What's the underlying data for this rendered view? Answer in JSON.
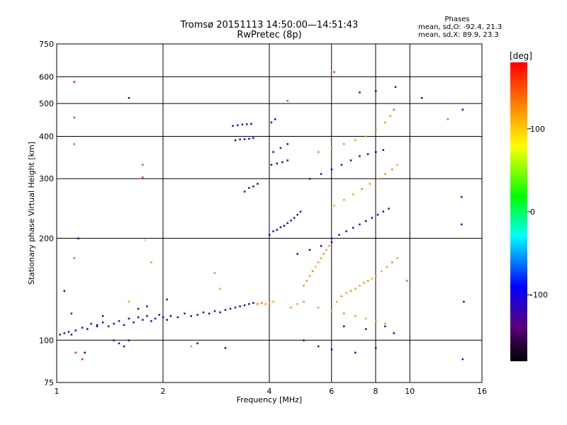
{
  "title": {
    "line1": "Tromsø 20151113 14:50:00—14:51:43",
    "line2": "RwPretec (8p)"
  },
  "phases_box": {
    "header": "Phases",
    "o_line": "mean, sd,O: -92.4, 21.3",
    "x_line": "mean, sd,X:  89.9, 23.3"
  },
  "colorbar": {
    "unit": "[deg]",
    "ticks": [
      "100",
      "0",
      "-100"
    ],
    "tick_values": [
      100,
      0,
      -100
    ],
    "range": [
      -180,
      180
    ]
  },
  "chart_data": {
    "type": "scatter",
    "xlabel": "Frequency [MHz]",
    "ylabel": "Stationary phase Virtual Height [km]",
    "x_scale": "log",
    "y_scale": "log",
    "xlim": [
      1,
      16
    ],
    "ylim": [
      75,
      750
    ],
    "x_ticks": [
      1,
      2,
      4,
      6,
      8,
      10,
      16
    ],
    "x_tick_labels": [
      "1",
      "2",
      "4",
      "6",
      "8",
      "10",
      "16"
    ],
    "y_ticks": [
      75,
      100,
      200,
      300,
      400,
      500,
      600,
      750
    ],
    "y_tick_labels": [
      "75",
      "100",
      "200",
      "300",
      "400",
      "500",
      "600",
      "750"
    ],
    "x_gridlines": [
      2,
      4,
      6,
      8,
      10
    ],
    "y_gridlines": [
      100,
      200,
      300,
      400,
      500,
      600
    ],
    "grid": true,
    "colormap": "rainbow phase",
    "series": [
      {
        "points": [
          [
            1.02,
            104,
            -110
          ],
          [
            1.05,
            105,
            -105
          ],
          [
            1.08,
            106,
            -100
          ],
          [
            1.1,
            104,
            -120
          ],
          [
            1.13,
            107,
            -95
          ],
          [
            1.18,
            109,
            -110
          ],
          [
            1.22,
            108,
            -100
          ],
          [
            1.25,
            112,
            -90
          ],
          [
            1.3,
            111,
            -110
          ],
          [
            1.35,
            113,
            -100
          ],
          [
            1.4,
            110,
            -105
          ],
          [
            1.45,
            112,
            -95
          ],
          [
            1.5,
            114,
            -110
          ],
          [
            1.55,
            111,
            -100
          ],
          [
            1.6,
            116,
            -90
          ],
          [
            1.65,
            113,
            -105
          ],
          [
            1.7,
            117,
            -100
          ],
          [
            1.75,
            115,
            -110
          ],
          [
            1.8,
            118,
            -95
          ],
          [
            1.85,
            114,
            -105
          ],
          [
            1.9,
            116,
            -100
          ],
          [
            1.95,
            119,
            -110
          ],
          [
            2.0,
            117,
            -100
          ],
          [
            2.05,
            115,
            -95
          ],
          [
            2.1,
            118,
            -105
          ],
          [
            2.2,
            117,
            -100
          ],
          [
            2.3,
            120,
            -110
          ],
          [
            2.4,
            118,
            -100
          ],
          [
            2.5,
            119,
            -95
          ],
          [
            2.6,
            121,
            -105
          ],
          [
            2.7,
            120,
            -100
          ],
          [
            2.8,
            122,
            -110
          ],
          [
            2.9,
            121,
            -100
          ],
          [
            3.0,
            123,
            -95
          ],
          [
            3.1,
            124,
            -105
          ],
          [
            3.2,
            125,
            -100
          ],
          [
            3.3,
            126,
            -110
          ],
          [
            3.4,
            127,
            -95
          ],
          [
            3.5,
            128,
            -100
          ],
          [
            3.6,
            129,
            -105
          ],
          [
            3.7,
            128,
            140
          ],
          [
            3.8,
            129,
            130
          ],
          [
            3.9,
            128,
            125
          ],
          [
            4.0,
            129,
            120
          ],
          [
            4.1,
            130,
            115
          ],
          [
            1.5,
            98,
            -110
          ],
          [
            1.55,
            96,
            -100
          ],
          [
            1.6,
            100,
            -90
          ],
          [
            1.45,
            100,
            -105
          ],
          [
            1.35,
            118,
            -100
          ],
          [
            1.7,
            124,
            -95
          ],
          [
            1.8,
            126,
            -100
          ],
          [
            2.05,
            132,
            -105
          ],
          [
            1.6,
            130,
            40
          ],
          [
            3.15,
            430,
            -110
          ],
          [
            3.25,
            432,
            -105
          ],
          [
            3.35,
            434,
            -100
          ],
          [
            3.45,
            435,
            -110
          ],
          [
            3.55,
            436,
            -95
          ],
          [
            3.2,
            390,
            -100
          ],
          [
            3.3,
            392,
            -105
          ],
          [
            3.4,
            393,
            -110
          ],
          [
            3.5,
            394,
            -100
          ],
          [
            3.6,
            396,
            -95
          ],
          [
            3.5,
            282,
            -110
          ],
          [
            3.6,
            285,
            -100
          ],
          [
            3.7,
            290,
            -105
          ],
          [
            3.4,
            275,
            -100
          ],
          [
            4.0,
            205,
            -100
          ],
          [
            4.1,
            210,
            -110
          ],
          [
            4.2,
            212,
            -95
          ],
          [
            4.3,
            216,
            -100
          ],
          [
            4.4,
            218,
            -110
          ],
          [
            4.5,
            222,
            -105
          ],
          [
            4.6,
            226,
            -100
          ],
          [
            4.7,
            230,
            -95
          ],
          [
            4.8,
            235,
            -105
          ],
          [
            4.9,
            240,
            -100
          ],
          [
            4.05,
            330,
            -110
          ],
          [
            4.2,
            333,
            -105
          ],
          [
            4.35,
            336,
            -100
          ],
          [
            4.5,
            340,
            -95
          ],
          [
            4.1,
            360,
            -100
          ],
          [
            4.3,
            370,
            -105
          ],
          [
            4.5,
            380,
            -110
          ],
          [
            4.15,
            450,
            -105
          ],
          [
            4.05,
            440,
            -100
          ],
          [
            5.0,
            145,
            120
          ],
          [
            5.1,
            150,
            125
          ],
          [
            5.2,
            155,
            115
          ],
          [
            5.3,
            160,
            130
          ],
          [
            5.4,
            165,
            110
          ],
          [
            5.5,
            170,
            120
          ],
          [
            5.6,
            175,
            115
          ],
          [
            5.7,
            180,
            125
          ],
          [
            5.8,
            185,
            120
          ],
          [
            5.9,
            190,
            115
          ],
          [
            6.2,
            130,
            110
          ],
          [
            6.4,
            135,
            120
          ],
          [
            6.6,
            138,
            115
          ],
          [
            6.8,
            140,
            125
          ],
          [
            7.0,
            142,
            120
          ],
          [
            7.2,
            145,
            115
          ],
          [
            7.4,
            148,
            120
          ],
          [
            7.6,
            150,
            125
          ],
          [
            7.8,
            152,
            110
          ],
          [
            8.0,
            155,
            120
          ],
          [
            8.3,
            160,
            115
          ],
          [
            8.6,
            165,
            120
          ],
          [
            8.9,
            170,
            125
          ],
          [
            9.2,
            175,
            115
          ],
          [
            6.0,
            200,
            -100
          ],
          [
            6.3,
            205,
            -110
          ],
          [
            6.6,
            210,
            -95
          ],
          [
            6.9,
            215,
            -100
          ],
          [
            7.2,
            220,
            -105
          ],
          [
            7.5,
            225,
            -100
          ],
          [
            7.8,
            230,
            -110
          ],
          [
            8.1,
            235,
            -95
          ],
          [
            8.4,
            240,
            -100
          ],
          [
            8.7,
            245,
            -105
          ],
          [
            6.1,
            250,
            110
          ],
          [
            6.5,
            260,
            120
          ],
          [
            6.9,
            270,
            115
          ],
          [
            7.3,
            280,
            125
          ],
          [
            7.7,
            290,
            120
          ],
          [
            8.1,
            300,
            115
          ],
          [
            8.5,
            310,
            120
          ],
          [
            8.9,
            320,
            125
          ],
          [
            9.2,
            330,
            110
          ],
          [
            5.5,
            360,
            130
          ],
          [
            6.0,
            370,
            120
          ],
          [
            6.5,
            380,
            125
          ],
          [
            7.0,
            390,
            115
          ],
          [
            7.5,
            400,
            120
          ],
          [
            8.0,
            420,
            130
          ],
          [
            8.5,
            440,
            125
          ],
          [
            8.8,
            460,
            120
          ],
          [
            9.0,
            480,
            140
          ],
          [
            5.2,
            300,
            -100
          ],
          [
            5.6,
            310,
            -110
          ],
          [
            6.0,
            320,
            -95
          ],
          [
            6.4,
            330,
            -100
          ],
          [
            6.8,
            340,
            -105
          ],
          [
            7.2,
            350,
            -100
          ],
          [
            7.6,
            355,
            -110
          ],
          [
            8.0,
            360,
            -95
          ],
          [
            8.4,
            365,
            -100
          ],
          [
            4.8,
            180,
            -100
          ],
          [
            5.2,
            185,
            -110
          ],
          [
            5.6,
            190,
            -95
          ],
          [
            6.0,
            195,
            -100
          ],
          [
            4.6,
            125,
            120
          ],
          [
            4.8,
            128,
            115
          ],
          [
            5.0,
            130,
            125
          ],
          [
            5.5,
            125,
            120
          ],
          [
            6.0,
            122,
            115
          ],
          [
            6.5,
            120,
            125
          ],
          [
            7.0,
            118,
            120
          ],
          [
            7.5,
            116,
            115
          ],
          [
            8.0,
            114,
            125
          ],
          [
            8.5,
            112,
            120
          ],
          [
            5.0,
            100,
            -100
          ],
          [
            5.5,
            96,
            -110
          ],
          [
            6.0,
            94,
            -95
          ],
          [
            7.0,
            92,
            -100
          ],
          [
            8.0,
            95,
            -105
          ],
          [
            8.5,
            110,
            -100
          ],
          [
            9.0,
            105,
            -110
          ],
          [
            7.5,
            108,
            -95
          ],
          [
            6.5,
            110,
            -100
          ],
          [
            1.12,
            580,
            180
          ],
          [
            1.12,
            455,
            160
          ],
          [
            1.12,
            380,
            140
          ],
          [
            1.15,
            200,
            -100
          ],
          [
            1.12,
            175,
            140
          ],
          [
            1.05,
            140,
            -100
          ],
          [
            1.1,
            120,
            -110
          ],
          [
            1.13,
            92,
            160
          ],
          [
            1.2,
            92,
            -100
          ],
          [
            1.18,
            88,
            170
          ],
          [
            1.75,
            330,
            150
          ],
          [
            1.75,
            303,
            160
          ],
          [
            1.78,
            198,
            60
          ],
          [
            1.85,
            170,
            120
          ],
          [
            1.6,
            520,
            -110
          ],
          [
            4.5,
            510,
            150
          ],
          [
            6.1,
            620,
            160
          ],
          [
            7.2,
            540,
            -100
          ],
          [
            8.0,
            545,
            -105
          ],
          [
            9.1,
            560,
            -110
          ],
          [
            10.8,
            520,
            -100
          ],
          [
            14.1,
            480,
            -100
          ],
          [
            14.0,
            265,
            -100
          ],
          [
            14.0,
            220,
            -100
          ],
          [
            14.2,
            130,
            -100
          ],
          [
            14.1,
            88,
            -100
          ],
          [
            12.8,
            450,
            140
          ],
          [
            9.8,
            150,
            140
          ],
          [
            1.3,
            110,
            -100
          ],
          [
            2.5,
            98,
            -100
          ],
          [
            3.0,
            95,
            -110
          ],
          [
            2.4,
            96,
            30
          ],
          [
            2.8,
            158,
            130
          ],
          [
            2.9,
            142,
            40
          ]
        ]
      }
    ]
  }
}
